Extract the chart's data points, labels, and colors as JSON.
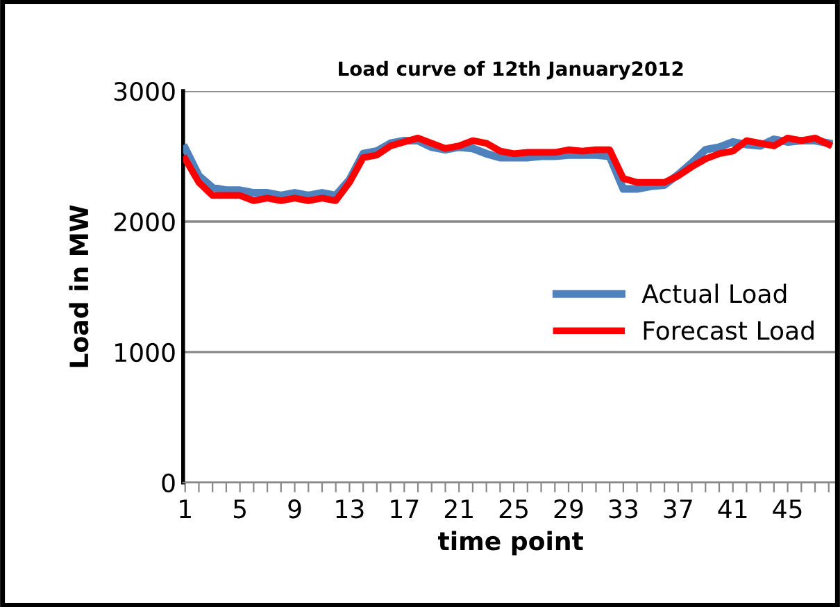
{
  "chart_data": {
    "type": "line",
    "title": "Load curve of 12th January2012",
    "xlabel": "time point",
    "ylabel": "Load in MW",
    "categories": [
      "1",
      null,
      null,
      null,
      "5",
      null,
      null,
      null,
      "9",
      null,
      null,
      null,
      "13",
      null,
      null,
      null,
      "17",
      null,
      null,
      null,
      "21",
      null,
      null,
      null,
      "25",
      null,
      null,
      null,
      "29",
      null,
      null,
      null,
      "33",
      null,
      null,
      null,
      "37",
      null,
      null,
      null,
      "41",
      null,
      null,
      null,
      "45",
      null,
      null,
      null
    ],
    "series": [
      {
        "name": "Actual Load",
        "color": "#4f81bd",
        "values": [
          2560,
          2350,
          2260,
          2240,
          2240,
          2220,
          2220,
          2200,
          2220,
          2200,
          2220,
          2200,
          2320,
          2520,
          2540,
          2600,
          2620,
          2620,
          2570,
          2550,
          2570,
          2560,
          2520,
          2490,
          2490,
          2490,
          2500,
          2500,
          2510,
          2510,
          2510,
          2500,
          2250,
          2250,
          2270,
          2280,
          2360,
          2450,
          2550,
          2570,
          2610,
          2590,
          2580,
          2630,
          2610,
          2620,
          2620,
          2600
        ]
      },
      {
        "name": "Forecast Load",
        "color": "#ff0000",
        "values": [
          2480,
          2300,
          2200,
          2200,
          2200,
          2160,
          2180,
          2160,
          2180,
          2160,
          2180,
          2160,
          2300,
          2490,
          2510,
          2580,
          2610,
          2640,
          2600,
          2560,
          2580,
          2620,
          2600,
          2540,
          2520,
          2530,
          2530,
          2530,
          2550,
          2540,
          2550,
          2550,
          2330,
          2300,
          2300,
          2300,
          2350,
          2420,
          2480,
          2520,
          2540,
          2620,
          2600,
          2580,
          2640,
          2620,
          2640,
          2590
        ]
      }
    ],
    "ylim": [
      0,
      3000
    ],
    "yticks": [
      0,
      1000,
      2000,
      3000
    ],
    "grid": "y",
    "legend": "right",
    "marker": "none",
    "line_style": "solid"
  }
}
